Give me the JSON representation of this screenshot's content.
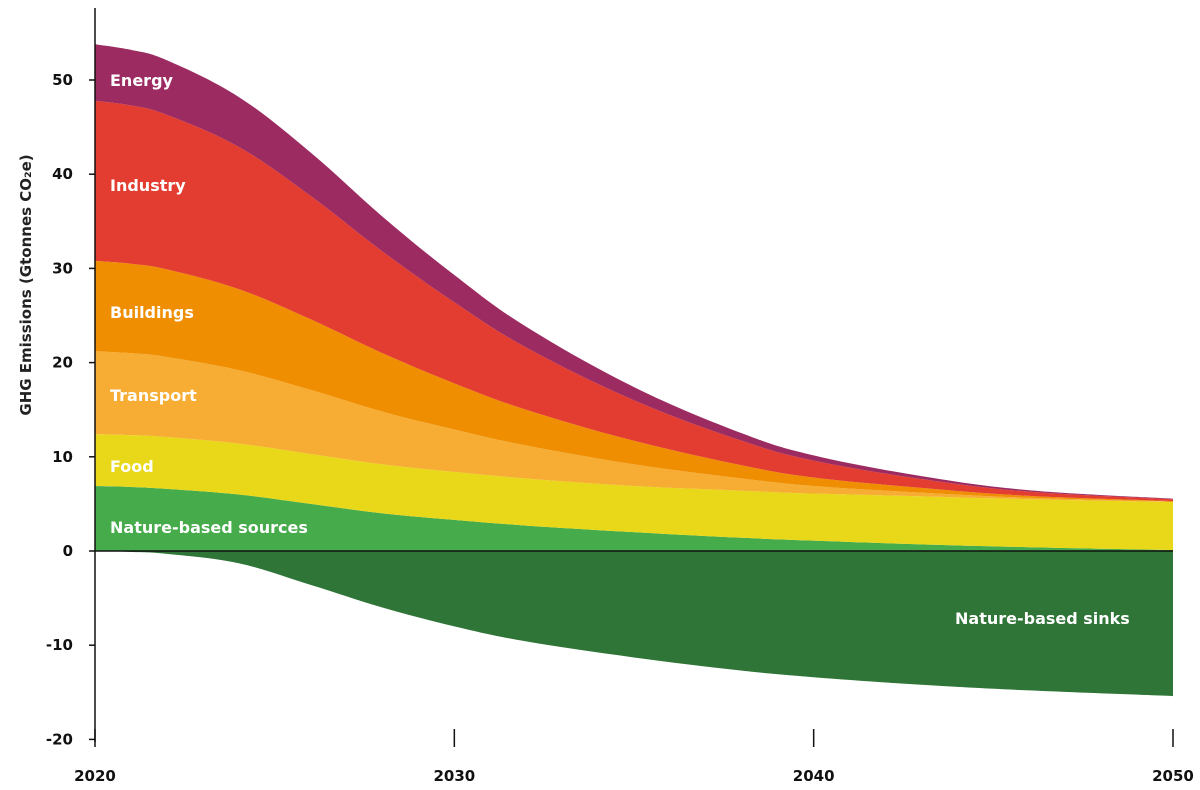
{
  "chart_data": {
    "type": "area",
    "title": "",
    "xlabel": "",
    "ylabel": "GHG Emissions (Gtonnes CO₂e)",
    "xlim": [
      2020,
      2050
    ],
    "ylim": [
      -22,
      57
    ],
    "x_ticks": [
      2020,
      2030,
      2040,
      2050
    ],
    "x_tick_labels": [
      "2020",
      "2030",
      "2040",
      "2050"
    ],
    "y_ticks": [
      50,
      40,
      30,
      20,
      10,
      0,
      -10,
      -20
    ],
    "y_tick_labels": [
      "50",
      "40",
      "30",
      "20",
      "10",
      "0",
      "-10",
      "-20"
    ],
    "grid": false,
    "stacked": true,
    "x": [
      2020,
      2021,
      2022,
      2024,
      2026,
      2028,
      2030,
      2032,
      2035,
      2038,
      2040,
      2043,
      2046,
      2050
    ],
    "series": [
      {
        "name": "Nature-based sources",
        "label": "Nature-based sources",
        "color": "#46ac4b",
        "values": [
          6.9,
          6.8,
          6.6,
          6.0,
          5.0,
          4.0,
          3.3,
          2.7,
          2.0,
          1.4,
          1.1,
          0.7,
          0.4,
          0.1
        ]
      },
      {
        "name": "Food",
        "label": "Food",
        "color": "#e9d81a",
        "values": [
          5.5,
          5.5,
          5.5,
          5.4,
          5.3,
          5.2,
          5.1,
          5.0,
          4.9,
          5.0,
          5.0,
          5.1,
          5.1,
          5.1
        ]
      },
      {
        "name": "Transport",
        "label": "Transport",
        "color": "#f7ad33",
        "values": [
          8.8,
          8.7,
          8.5,
          7.8,
          6.8,
          5.6,
          4.5,
          3.5,
          2.3,
          1.3,
          0.8,
          0.4,
          0.15,
          0.05
        ]
      },
      {
        "name": "Buildings",
        "label": "Buildings",
        "color": "#ef8e00",
        "values": [
          9.6,
          9.5,
          9.3,
          8.6,
          7.5,
          6.2,
          4.9,
          3.8,
          2.5,
          1.4,
          0.9,
          0.5,
          0.2,
          0.05
        ]
      },
      {
        "name": "Industry",
        "label": "Industry",
        "color": "#e33d31",
        "values": [
          17.0,
          16.8,
          16.4,
          15.1,
          13.1,
          10.8,
          8.6,
          6.6,
          4.3,
          2.6,
          1.8,
          0.95,
          0.45,
          0.2
        ]
      },
      {
        "name": "Energy",
        "label": "Energy",
        "color": "#9c2b62",
        "values": [
          6.0,
          5.9,
          5.8,
          5.3,
          4.6,
          3.7,
          2.9,
          2.2,
          1.4,
          0.8,
          0.55,
          0.3,
          0.15,
          0.05
        ]
      },
      {
        "name": "Nature-based sinks",
        "label": "Nature-based sinks",
        "color": "#2f7537",
        "values": [
          0.0,
          -0.1,
          -0.3,
          -1.3,
          -3.6,
          -6.0,
          -8.0,
          -9.6,
          -11.3,
          -12.7,
          -13.4,
          -14.2,
          -14.8,
          -15.4
        ]
      }
    ]
  }
}
